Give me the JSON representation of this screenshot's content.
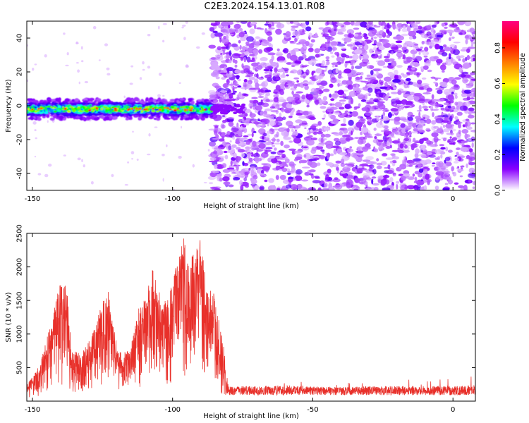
{
  "title": "C2E3.2024.154.13.01.R08",
  "chart_data": [
    {
      "type": "heatmap",
      "xlabel": "Height of straight line (km)",
      "ylabel": "Frequency (Hz)",
      "xlim": [
        -152,
        8
      ],
      "ylim": [
        -50,
        50
      ],
      "xticks": [
        -150,
        -100,
        -50,
        0
      ],
      "yticks": [
        -40,
        -20,
        0,
        20,
        40
      ],
      "colorbar": {
        "label": "Normalized spectral amplitude",
        "range": [
          0,
          0.95
        ],
        "ticks": [
          0.0,
          0.2,
          0.4,
          0.6,
          0.8
        ],
        "colors": [
          "#ffffff",
          "#8a00ff",
          "#0000ff",
          "#00ffff",
          "#00ff00",
          "#ffff00",
          "#ff8000",
          "#ff0000",
          "#ff0080"
        ]
      },
      "features": {
        "signal_band_x_range": [
          -152,
          -86
        ],
        "signal_band_center_hz": -2,
        "noise_region_x_range": [
          -86,
          8
        ]
      }
    },
    {
      "type": "line",
      "xlabel": "Height of straight line (km)",
      "ylabel": "SNR (10 * v/v)",
      "xlim": [
        -152,
        8
      ],
      "ylim": [
        0,
        2500
      ],
      "xticks": [
        -150,
        -100,
        -50,
        0
      ],
      "yticks": [
        500,
        1000,
        1500,
        2000,
        2500
      ],
      "series_color": "#e8302a",
      "envelope": {
        "x": [
          -152,
          -148,
          -145,
          -142,
          -140,
          -138,
          -136,
          -133,
          -130,
          -127,
          -125,
          -123,
          -121,
          -118,
          -115,
          -112,
          -109,
          -107,
          -104,
          -101,
          -98,
          -96,
          -94,
          -92,
          -90,
          -88,
          -86,
          -84.5,
          -80,
          -60,
          -40,
          -20,
          0,
          8
        ],
        "y": [
          250,
          500,
          900,
          1500,
          1750,
          1800,
          800,
          700,
          900,
          1200,
          1500,
          1650,
          1100,
          700,
          800,
          1400,
          1700,
          2000,
          1500,
          1600,
          2250,
          2500,
          2000,
          2350,
          2500,
          1800,
          1650,
          1600,
          200,
          210,
          190,
          210,
          200,
          220
        ]
      }
    }
  ]
}
